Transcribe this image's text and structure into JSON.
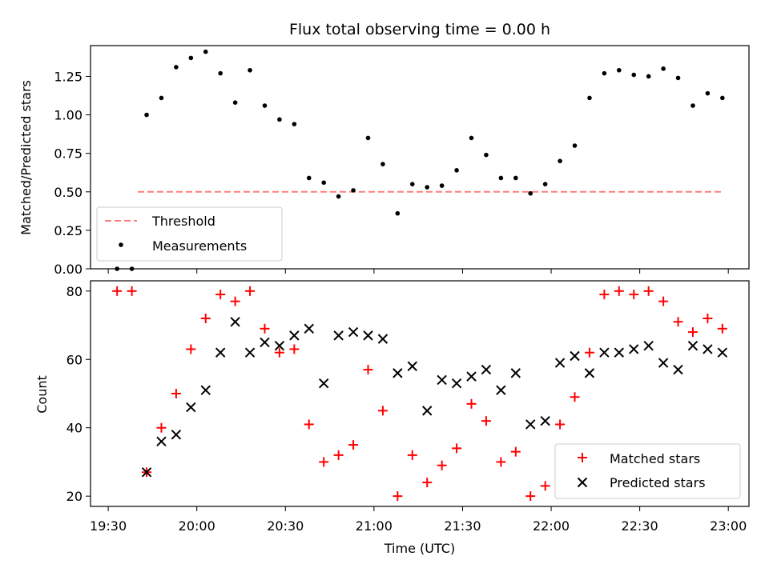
{
  "chart_data": [
    {
      "type": "scatter",
      "title": "Flux total observing time = 0.00 h",
      "ylabel": "Matched/Predicted stars",
      "xlim": [
        "19:24",
        "23:07"
      ],
      "ylim": [
        0,
        1.45
      ],
      "yticks": [
        "0.00",
        "0.25",
        "0.50",
        "0.75",
        "1.00",
        "1.25"
      ],
      "ytick_values": [
        0,
        0.25,
        0.5,
        0.75,
        1.0,
        1.25
      ],
      "legend_position": "lower-left",
      "threshold": {
        "name": "Threshold",
        "value": 0.5,
        "x_start": "19:40",
        "x_end": "22:58",
        "color": "#ff7f7f",
        "style": "dashed"
      },
      "series": [
        {
          "name": "Measurements",
          "color": "#000000",
          "marker": "dot",
          "x": [
            "19:33",
            "19:38",
            "19:43",
            "19:48",
            "19:53",
            "19:58",
            "20:03",
            "20:08",
            "20:13",
            "20:18",
            "20:23",
            "20:28",
            "20:33",
            "20:38",
            "20:43",
            "20:48",
            "20:53",
            "20:58",
            "21:03",
            "21:08",
            "21:13",
            "21:18",
            "21:23",
            "21:28",
            "21:33",
            "21:38",
            "21:43",
            "21:48",
            "21:53",
            "21:58",
            "22:03",
            "22:08",
            "22:13",
            "22:18",
            "22:23",
            "22:28",
            "22:33",
            "22:38",
            "22:43",
            "22:48",
            "22:53",
            "22:58"
          ],
          "y": [
            0.0,
            0.0,
            1.0,
            1.11,
            1.31,
            1.37,
            1.41,
            1.27,
            1.08,
            1.29,
            1.06,
            0.97,
            0.94,
            0.59,
            0.56,
            0.47,
            0.51,
            0.85,
            0.68,
            0.36,
            0.55,
            0.53,
            0.54,
            0.64,
            0.85,
            0.74,
            0.59,
            0.59,
            0.49,
            0.55,
            0.7,
            0.8,
            1.11,
            1.27,
            1.29,
            1.26,
            1.25,
            1.3,
            1.24,
            1.06,
            1.14,
            1.11
          ]
        }
      ]
    },
    {
      "type": "scatter",
      "xlabel": "Time (UTC)",
      "ylabel": "Count",
      "xlim": [
        "19:24",
        "23:07"
      ],
      "ylim": [
        17,
        83
      ],
      "xticks": [
        "19:30",
        "20:00",
        "20:30",
        "21:00",
        "21:30",
        "22:00",
        "22:30",
        "23:00"
      ],
      "yticks": [
        "20",
        "40",
        "60",
        "80"
      ],
      "ytick_values": [
        20,
        40,
        60,
        80
      ],
      "legend_position": "lower-right",
      "series": [
        {
          "name": "Matched stars",
          "color": "#ff0000",
          "marker": "plus",
          "x": [
            "19:33",
            "19:38",
            "19:43",
            "19:48",
            "19:53",
            "19:58",
            "20:03",
            "20:08",
            "20:13",
            "20:18",
            "20:23",
            "20:28",
            "20:33",
            "20:38",
            "20:43",
            "20:48",
            "20:53",
            "20:58",
            "21:03",
            "21:08",
            "21:13",
            "21:18",
            "21:23",
            "21:28",
            "21:33",
            "21:38",
            "21:43",
            "21:48",
            "21:53",
            "21:58",
            "22:03",
            "22:08",
            "22:13",
            "22:18",
            "22:23",
            "22:28",
            "22:33",
            "22:38",
            "22:43",
            "22:48",
            "22:53",
            "22:58"
          ],
          "y": [
            80,
            80,
            27,
            40,
            50,
            63,
            72,
            79,
            77,
            80,
            69,
            62,
            63,
            41,
            30,
            32,
            35,
            57,
            45,
            20,
            32,
            24,
            29,
            34,
            47,
            42,
            30,
            33,
            20,
            23,
            41,
            49,
            62,
            79,
            80,
            79,
            80,
            77,
            71,
            68,
            72,
            69
          ]
        },
        {
          "name": "Predicted stars",
          "color": "#000000",
          "marker": "x",
          "x": [
            "19:43",
            "19:48",
            "19:53",
            "19:58",
            "20:03",
            "20:08",
            "20:13",
            "20:18",
            "20:23",
            "20:28",
            "20:33",
            "20:38",
            "20:43",
            "20:48",
            "20:53",
            "20:58",
            "21:03",
            "21:08",
            "21:13",
            "21:18",
            "21:23",
            "21:28",
            "21:33",
            "21:38",
            "21:43",
            "21:48",
            "21:53",
            "21:58",
            "22:03",
            "22:08",
            "22:13",
            "22:18",
            "22:23",
            "22:28",
            "22:33",
            "22:38",
            "22:43",
            "22:48",
            "22:53",
            "22:58"
          ],
          "y": [
            27,
            36,
            38,
            46,
            51,
            62,
            71,
            62,
            65,
            64,
            67,
            69,
            53,
            67,
            68,
            67,
            66,
            56,
            58,
            45,
            54,
            53,
            55,
            57,
            51,
            56,
            41,
            42,
            59,
            61,
            56,
            62,
            62,
            63,
            64,
            59,
            57,
            64,
            63,
            62
          ]
        }
      ]
    }
  ]
}
